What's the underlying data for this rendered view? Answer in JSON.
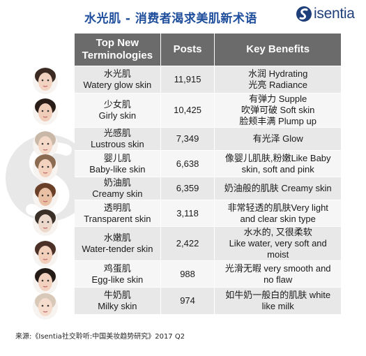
{
  "title": "水光肌 - 消费者渴求美肌新术语",
  "logo": {
    "text": "isentia"
  },
  "table": {
    "headers": {
      "term_line1": "Top New",
      "term_line2": "Terminologies",
      "posts": "Posts",
      "benefits": "Key Benefits"
    },
    "rows": [
      {
        "zh": "水光肌",
        "en": "Watery glow skin",
        "posts": "11,915",
        "benefits": [
          "水润 Hydrating",
          "光亮 Radiance"
        ]
      },
      {
        "zh": "少女肌",
        "en": "Girly skin",
        "posts": "10,425",
        "benefits": [
          "有弹力 Supple",
          "吹弹可破 Soft skin",
          "脸颊丰满 Plump up"
        ]
      },
      {
        "zh": "光感肌",
        "en": "Lustrous skin",
        "posts": "7,349",
        "benefits": [
          "有光泽 Glow"
        ]
      },
      {
        "zh": "婴儿肌",
        "en": "Baby-like skin",
        "posts": "6,638",
        "benefits": [
          "像婴儿肌肤,粉嫩Like Baby",
          "skin, soft and pink"
        ]
      },
      {
        "zh": "奶油肌",
        "en": "Creamy skin",
        "posts": "6,359",
        "benefits": [
          "奶油般的肌肤 Creamy skin"
        ]
      },
      {
        "zh": "透明肌",
        "en": "Transparent skin",
        "posts": "3,118",
        "benefits": [
          "非常轻透的肌肤Very light",
          "and clear skin type"
        ]
      },
      {
        "zh": "水嫩肌",
        "en": "Water-tender skin",
        "posts": "2,422",
        "benefits": [
          "水水的, 又很柔软",
          "Like water, very soft and",
          "moist"
        ]
      },
      {
        "zh": "鸡蛋肌",
        "en": "Egg-like skin",
        "posts": "988",
        "benefits": [
          "光滑无暇  very smooth and",
          "no flaw"
        ]
      },
      {
        "zh": "牛奶肌",
        "en": "Milky skin",
        "posts": "974",
        "benefits": [
          "如牛奶一般白的肌肤 white",
          "like milk"
        ]
      }
    ]
  },
  "source": "来源:《Isentia社交聆听:中国美妆趋势研究》2017 Q2",
  "colors": {
    "title": "#1f4e9c",
    "header_bg": "#6b6b6b",
    "row_odd": "#e8e8e8",
    "row_even": "#f6f6f6"
  },
  "faces": [
    "woman-portrait",
    "girl-portrait",
    "woman-portrait",
    "baby-portrait",
    "woman-portrait",
    "doll-portrait",
    "woman-portrait",
    "woman-portrait",
    "woman-portrait"
  ]
}
